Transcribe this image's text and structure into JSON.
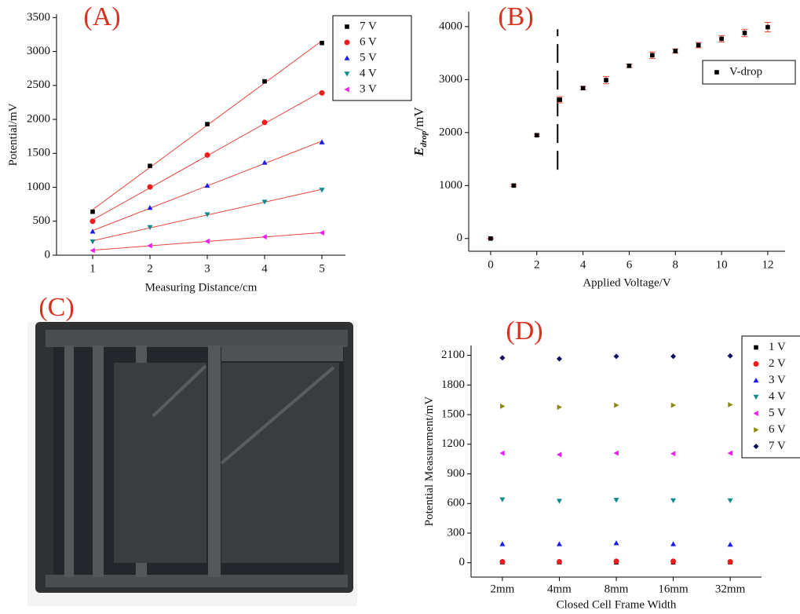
{
  "chart_data": [
    {
      "type": "scatter",
      "title": "(A)",
      "xlabel": "Measuring Distance/cm",
      "ylabel": "Potential/mV",
      "x": [
        1,
        2,
        3,
        4,
        5
      ],
      "xlim": [
        0.37,
        5.41
      ],
      "xticks": [
        1,
        2,
        3,
        4,
        5
      ],
      "ylim": [
        0,
        3550
      ],
      "yticks": [
        0,
        500,
        1000,
        1500,
        2000,
        2500,
        3000,
        3500
      ],
      "fit": true,
      "fit_color": "#e8463c",
      "legend": "upper right",
      "series": [
        {
          "name": "7 V",
          "color": "#000000",
          "marker": "square",
          "values": [
            640,
            1315,
            1930,
            2560,
            3125
          ]
        },
        {
          "name": "6 V",
          "color": "#ee1c1c",
          "marker": "circle",
          "values": [
            500,
            1005,
            1475,
            1955,
            2390
          ]
        },
        {
          "name": "5 V",
          "color": "#1c1cee",
          "marker": "triangle-up",
          "values": [
            350,
            700,
            1025,
            1365,
            1665
          ]
        },
        {
          "name": "4 V",
          "color": "#108a8a",
          "marker": "triangle-down",
          "values": [
            200,
            410,
            600,
            785,
            960
          ]
        },
        {
          "name": "3 V",
          "color": "#ee1cee",
          "marker": "triangle-left",
          "values": [
            70,
            140,
            205,
            270,
            330
          ]
        }
      ]
    },
    {
      "type": "scatter",
      "title": "(B)",
      "xlabel": "Applied Voltage/V",
      "ylabel": "E",
      "ylabel_sub": "drop",
      "ylabel_suffix": "/mV",
      "x": [
        0,
        1,
        2,
        3,
        4,
        5,
        6,
        7,
        8,
        9,
        10,
        11,
        12
      ],
      "xlim": [
        -0.95,
        12.75
      ],
      "xticks": [
        0,
        2,
        4,
        6,
        8,
        10,
        12
      ],
      "ylim": [
        -240,
        4280
      ],
      "yticks": [
        0,
        1000,
        2000,
        3000,
        4000
      ],
      "legend": "upper right",
      "error_color": "#e8463c",
      "reference_line": {
        "x": 2.9,
        "y": [
          1300,
          3950
        ]
      },
      "series": [
        {
          "name": "V-drop",
          "color": "#000000",
          "marker": "square",
          "values": [
            0,
            1000,
            1950,
            2620,
            2840,
            2990,
            3260,
            3460,
            3540,
            3650,
            3770,
            3880,
            3990
          ],
          "errors": [
            10,
            20,
            20,
            60,
            30,
            70,
            30,
            60,
            40,
            50,
            60,
            70,
            90
          ]
        }
      ]
    },
    {
      "type": "scatter",
      "title": "(D)",
      "xlabel": "Closed Cell Frame Width",
      "ylabel": "Potential Measurement/mV",
      "categories": [
        "2mm",
        "4mm",
        "8mm",
        "16mm",
        "32mm"
      ],
      "ylim": [
        -145,
        2200
      ],
      "yticks": [
        0,
        300,
        600,
        900,
        1200,
        1500,
        1800,
        2100
      ],
      "legend": "upper right",
      "series": [
        {
          "name": "1 V",
          "color": "#000000",
          "marker": "square",
          "values": [
            5,
            5,
            5,
            5,
            5
          ]
        },
        {
          "name": "2 V",
          "color": "#ee1c1c",
          "marker": "circle",
          "values": [
            10,
            10,
            15,
            15,
            10
          ]
        },
        {
          "name": "3 V",
          "color": "#1c1cee",
          "marker": "triangle-up",
          "values": [
            190,
            190,
            200,
            190,
            185
          ]
        },
        {
          "name": "4 V",
          "color": "#108a8a",
          "marker": "triangle-down",
          "values": [
            640,
            625,
            635,
            630,
            630
          ]
        },
        {
          "name": "5 V",
          "color": "#ee1cee",
          "marker": "triangle-left",
          "values": [
            1110,
            1095,
            1110,
            1105,
            1110
          ]
        },
        {
          "name": "6 V",
          "color": "#8a8a10",
          "marker": "triangle-right",
          "values": [
            1585,
            1575,
            1595,
            1595,
            1600
          ]
        },
        {
          "name": "7 V",
          "color": "#101060",
          "marker": "diamond",
          "values": [
            2075,
            2065,
            2090,
            2090,
            2095
          ]
        }
      ]
    }
  ],
  "photo": {
    "label": "(C)"
  }
}
